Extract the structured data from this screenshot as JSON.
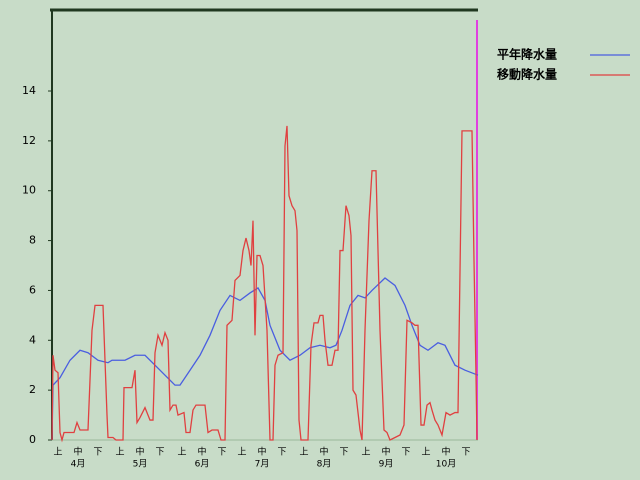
{
  "chart_data": {
    "type": "line",
    "xlim": [
      0,
      213
    ],
    "ylim": [
      0,
      17.25
    ],
    "yticks": [
      0,
      2,
      4,
      6,
      8,
      10,
      12,
      14
    ],
    "xticks": [
      {
        "value": 3,
        "label": "上"
      },
      {
        "value": 13,
        "label": "中"
      },
      {
        "value": 23,
        "label": "下"
      },
      {
        "value": 34,
        "label": "上"
      },
      {
        "value": 44,
        "label": "中"
      },
      {
        "value": 54,
        "label": "下"
      },
      {
        "value": 65,
        "label": "上"
      },
      {
        "value": 75,
        "label": "中"
      },
      {
        "value": 85,
        "label": "下"
      },
      {
        "value": 95,
        "label": "上"
      },
      {
        "value": 105,
        "label": "中"
      },
      {
        "value": 115,
        "label": "下"
      },
      {
        "value": 126,
        "label": "上"
      },
      {
        "value": 136,
        "label": "中"
      },
      {
        "value": 146,
        "label": "下"
      },
      {
        "value": 157,
        "label": "上"
      },
      {
        "value": 167,
        "label": "中"
      },
      {
        "value": 177,
        "label": "下"
      },
      {
        "value": 187,
        "label": "上"
      },
      {
        "value": 197,
        "label": "中"
      },
      {
        "value": 207,
        "label": "下"
      }
    ],
    "month_ticks": [
      {
        "value": 13,
        "label": "4月"
      },
      {
        "value": 44,
        "label": "5月"
      },
      {
        "value": 75,
        "label": "6月"
      },
      {
        "value": 105,
        "label": "7月"
      },
      {
        "value": 136,
        "label": "8月"
      },
      {
        "value": 167,
        "label": "9月"
      },
      {
        "value": 197,
        "label": "10月"
      }
    ],
    "series": [
      {
        "name": "平年降水量",
        "color": "#4a5ee0",
        "x": [
          0,
          0.5,
          4,
          9,
          14,
          18,
          23,
          28,
          30,
          36.5,
          41.5,
          46.5,
          51.5,
          56.5,
          61.5,
          64,
          69,
          74,
          79,
          84,
          89,
          94,
          99,
          103,
          106.5,
          109,
          114,
          119,
          124,
          129,
          134,
          139,
          142,
          145,
          149,
          153,
          156.5,
          160,
          166.5,
          171.5,
          176.5,
          180,
          184,
          188,
          193,
          196.5,
          201.5,
          206.5,
          213
        ],
        "values": [
          0,
          2.2,
          2.5,
          3.2,
          3.6,
          3.5,
          3.2,
          3.1,
          3.2,
          3.2,
          3.4,
          3.4,
          3.0,
          2.6,
          2.2,
          2.2,
          2.8,
          3.4,
          4.2,
          5.2,
          5.8,
          5.6,
          5.9,
          6.1,
          5.6,
          4.6,
          3.6,
          3.2,
          3.4,
          3.7,
          3.8,
          3.7,
          3.8,
          4.4,
          5.4,
          5.8,
          5.7,
          6.0,
          6.5,
          6.2,
          5.4,
          4.6,
          3.8,
          3.6,
          3.9,
          3.8,
          3.0,
          2.8,
          2.6
        ]
      },
      {
        "name": "移動降水量",
        "color": "#e04040",
        "x": [
          0,
          0.5,
          1.5,
          3,
          4,
          5,
          6,
          11,
          12.5,
          14,
          18,
          20,
          21.5,
          25.5,
          27.5,
          28,
          30.5,
          32,
          35.5,
          36,
          40,
          41.5,
          42.5,
          44,
          46.5,
          49,
          50.5,
          51.5,
          53,
          55,
          56.5,
          58,
          59,
          60.5,
          62,
          63,
          66,
          67,
          69,
          70.5,
          72,
          76.5,
          78,
          80,
          83,
          84.5,
          86.5,
          87.5,
          90,
          91.5,
          94,
          95.5,
          97,
          98.5,
          99.5,
          100.5,
          101.5,
          102.5,
          104,
          105.5,
          107.5,
          109,
          110.5,
          111.5,
          113,
          115.5,
          116.5,
          117.5,
          118.5,
          120,
          121.5,
          122.5,
          123.5,
          124.5,
          128,
          129.5,
          131,
          133,
          134,
          135.5,
          136.5,
          138,
          140,
          141.5,
          143,
          144,
          145.5,
          147,
          148.5,
          149.5,
          150.5,
          152,
          154,
          155,
          156.5,
          158.5,
          160,
          162,
          164,
          166,
          167.5,
          169,
          171.5,
          174,
          176,
          177.5,
          180,
          181.5,
          183,
          184.5,
          186,
          187.5,
          189,
          190,
          191.5,
          193,
          195,
          197,
          199,
          201.5,
          203,
          205,
          210,
          211,
          212,
          212.5
        ],
        "values": [
          0,
          3.4,
          2.8,
          2.7,
          0.3,
          0,
          0.3,
          0.3,
          0.7,
          0.4,
          0.4,
          4.4,
          5.4,
          5.4,
          1.0,
          0.1,
          0.1,
          0,
          0,
          2.1,
          2.1,
          2.8,
          0.7,
          0.9,
          1.3,
          0.8,
          0.8,
          3.5,
          4.2,
          3.8,
          4.3,
          4.0,
          1.2,
          1.4,
          1.4,
          1.0,
          1.1,
          0.3,
          0.3,
          1.2,
          1.4,
          1.4,
          0.3,
          0.4,
          0.4,
          0,
          0,
          4.6,
          4.8,
          6.4,
          6.6,
          7.6,
          8.1,
          7.6,
          7.0,
          8.8,
          4.2,
          7.4,
          7.4,
          7.0,
          4.4,
          0,
          0,
          3.0,
          3.4,
          3.5,
          11.8,
          12.6,
          9.8,
          9.4,
          9.2,
          8.4,
          0.8,
          0,
          0,
          3.8,
          4.7,
          4.7,
          5.0,
          5.0,
          4.0,
          3.0,
          3.0,
          3.6,
          3.6,
          7.6,
          7.6,
          9.4,
          9.0,
          8.2,
          2.0,
          1.8,
          0.4,
          0,
          4.4,
          8.8,
          10.8,
          10.8,
          4.4,
          0.4,
          0.3,
          0,
          0.1,
          0.2,
          0.6,
          4.8,
          4.7,
          4.6,
          4.6,
          0.6,
          0.6,
          1.4,
          1.5,
          1.2,
          0.8,
          0.6,
          0.2,
          1.1,
          1.0,
          1.1,
          1.1,
          12.4,
          12.4,
          7.2,
          2.6,
          0
        ]
      }
    ]
  }
}
